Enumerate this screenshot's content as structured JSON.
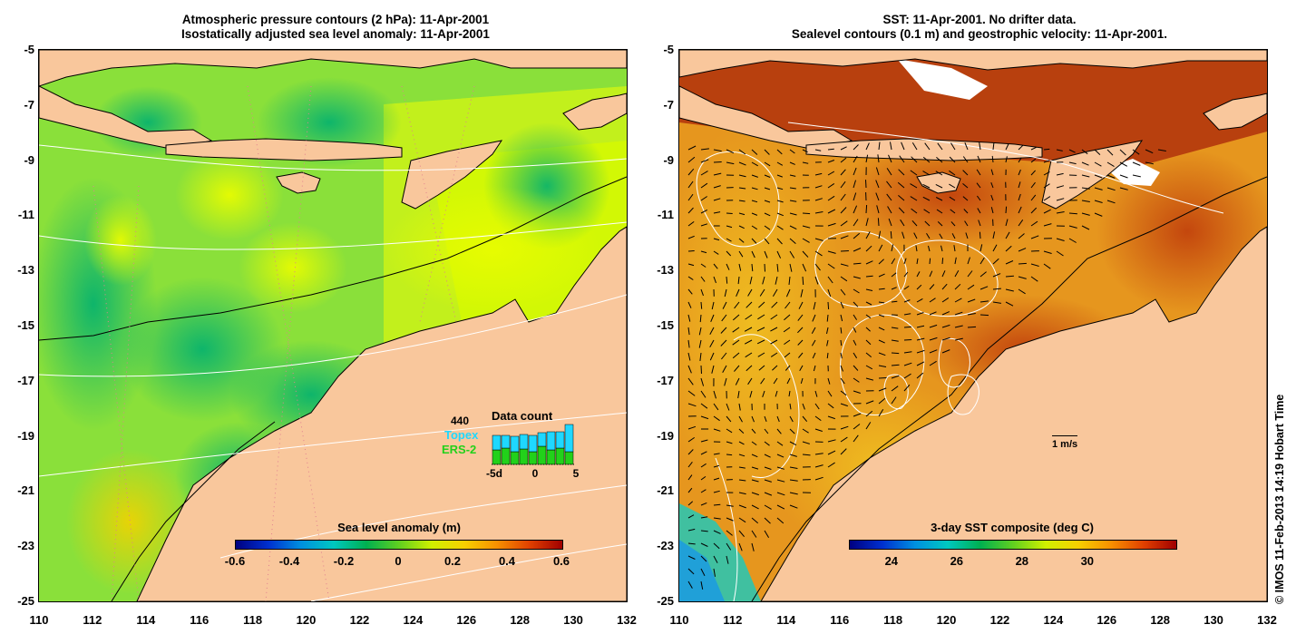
{
  "left_panel": {
    "title_line1": "Atmospheric pressure contours (2 hPa): 11-Apr-2001",
    "title_line2": "Isostatically adjusted sea level anomaly: 11-Apr-2001",
    "colorbar_title": "Sea level anomaly (m)",
    "colorbar_ticks": [
      "-0.6",
      "-0.4",
      "-0.2",
      "0",
      "0.2",
      "0.4",
      "0.6"
    ],
    "data_count": {
      "count_label": "440",
      "title": "Data count",
      "topex_label": "Topex",
      "ers_label": "ERS-2",
      "x_ticks": [
        "-5d",
        "0",
        "5"
      ]
    }
  },
  "right_panel": {
    "title_line1": "SST: 11-Apr-2001. No drifter data.",
    "title_line2": "Sealevel contours (0.1 m) and geostrophic velocity: 11-Apr-2001.",
    "colorbar_title": "3-day SST composite (deg C)",
    "colorbar_ticks": [
      "24",
      "26",
      "28",
      "30"
    ],
    "velocity_scale_label": "1 m/s"
  },
  "axes": {
    "y_ticks": [
      "-5",
      "-7",
      "-9",
      "-11",
      "-13",
      "-15",
      "-17",
      "-19",
      "-21",
      "-23",
      "-25"
    ],
    "x_ticks": [
      "110",
      "112",
      "114",
      "116",
      "118",
      "120",
      "122",
      "124",
      "126",
      "128",
      "130",
      "132"
    ]
  },
  "credit": "© IMOS 11-Feb-2013 14:19 Hobart Time",
  "colors": {
    "land": "#f9c79c",
    "sla_low": "#00a84f",
    "sla_high": "#d6fa00",
    "sst_warm": "#c84a10",
    "sst_mid": "#e8a020"
  }
}
